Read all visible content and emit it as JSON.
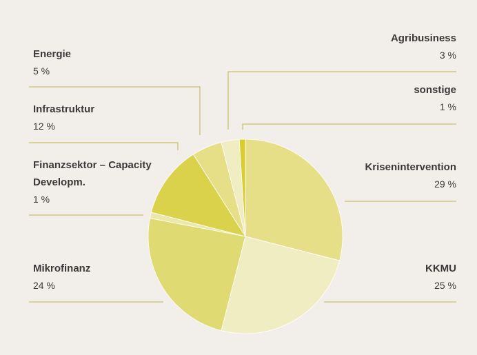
{
  "chart_data": {
    "type": "pie",
    "categories": [
      "Krisenintervention",
      "KKMU",
      "Mikrofinanz",
      "Finanzsektor – Capacity Developm.",
      "Infrastruktur",
      "Energie",
      "Agribusiness",
      "sonstige"
    ],
    "values": [
      29,
      25,
      24,
      1,
      12,
      5,
      3,
      1
    ],
    "value_labels": [
      "29 %",
      "25 %",
      "24 %",
      "1 %",
      "12 %",
      "5 %",
      "3 %",
      "1 %"
    ],
    "colors": [
      "#e6df88",
      "#f1edc2",
      "#e0da72",
      "#ece7ab",
      "#dbd24c",
      "#e6df88",
      "#f1edc2",
      "#d7cd2e"
    ]
  }
}
